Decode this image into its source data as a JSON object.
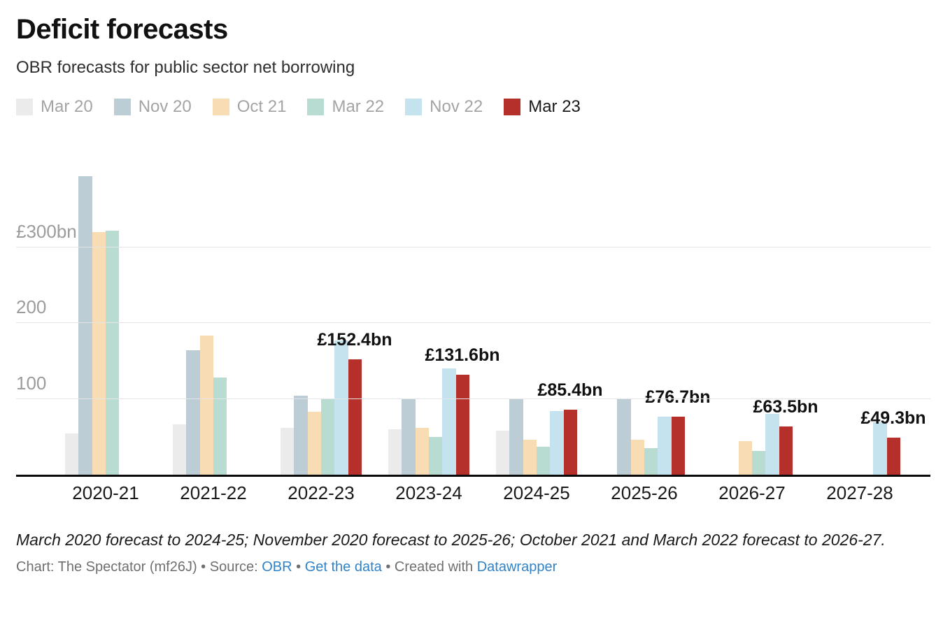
{
  "header": {
    "title": "Deficit forecasts",
    "subtitle": "OBR forecasts for public sector net borrowing"
  },
  "legend": {
    "items": [
      {
        "label": "Mar 20",
        "color": "#ebebeb",
        "text_color": "#a4a4a4"
      },
      {
        "label": "Nov 20",
        "color": "#bccdd6",
        "text_color": "#a4a4a4"
      },
      {
        "label": "Oct 21",
        "color": "#f7dcb4",
        "text_color": "#a4a4a4"
      },
      {
        "label": "Mar 22",
        "color": "#b8dcd2",
        "text_color": "#a4a4a4"
      },
      {
        "label": "Nov 22",
        "color": "#c4e3ef",
        "text_color": "#a4a4a4"
      },
      {
        "label": "Mar 23",
        "color": "#b5302a",
        "text_color": "#1a1a1a"
      }
    ]
  },
  "chart_data": {
    "type": "bar",
    "title": "Deficit forecasts",
    "subtitle": "OBR forecasts for public sector net borrowing",
    "unit": "£bn",
    "categories": [
      "2020-21",
      "2021-22",
      "2022-23",
      "2023-24",
      "2024-25",
      "2025-26",
      "2026-27",
      "2027-28"
    ],
    "series": [
      {
        "name": "Mar 20",
        "color": "#ebebeb",
        "values": [
          54.8,
          66.7,
          61.5,
          60.2,
          57.9,
          null,
          null,
          null
        ]
      },
      {
        "name": "Nov 20",
        "color": "#bccdd6",
        "values": [
          393.5,
          164.2,
          104.6,
          100.8,
          100.6,
          100.8,
          null,
          null
        ]
      },
      {
        "name": "Oct 21",
        "color": "#f7dcb4",
        "values": [
          319.9,
          183.0,
          83.0,
          61.6,
          46.3,
          46.4,
          44.0,
          null
        ]
      },
      {
        "name": "Mar 22",
        "color": "#b8dcd2",
        "values": [
          321.8,
          127.8,
          99.1,
          50.2,
          36.5,
          35.2,
          31.6,
          null
        ]
      },
      {
        "name": "Nov 22",
        "color": "#c4e3ef",
        "values": [
          null,
          null,
          177.0,
          140.0,
          84.0,
          76.6,
          80.0,
          69.2
        ]
      },
      {
        "name": "Mar 23",
        "color": "#b5302a",
        "values": [
          null,
          null,
          152.4,
          131.6,
          85.4,
          76.7,
          63.5,
          49.3
        ],
        "data_labels": [
          null,
          null,
          "£152.4bn",
          "£131.6bn",
          "£85.4bn",
          "£76.7bn",
          "£63.5bn",
          "£49.3bn"
        ]
      }
    ],
    "y_axis": {
      "ticks": [
        {
          "value": 100,
          "label": "100"
        },
        {
          "value": 200,
          "label": "200"
        },
        {
          "value": 300,
          "label": "£300bn"
        }
      ],
      "range": [
        0,
        430
      ]
    },
    "grid": true,
    "legend_position": "top",
    "axis_line_color": "#0a0a0a",
    "gridline_color": "#e4e4e4"
  },
  "footer": {
    "note": "March 2020 forecast to 2024-25; November 2020 forecast to 2025-26; October 2021 and March 2022 forecast to 2026-27.",
    "byline_prefix": "Chart: The Spectator (mf26J) • Source: ",
    "source_link": "OBR",
    "sep1": " • ",
    "data_link": "Get the data",
    "sep2": " • Created with ",
    "tool_link": "Datawrapper",
    "link_color": "#3183c8"
  }
}
